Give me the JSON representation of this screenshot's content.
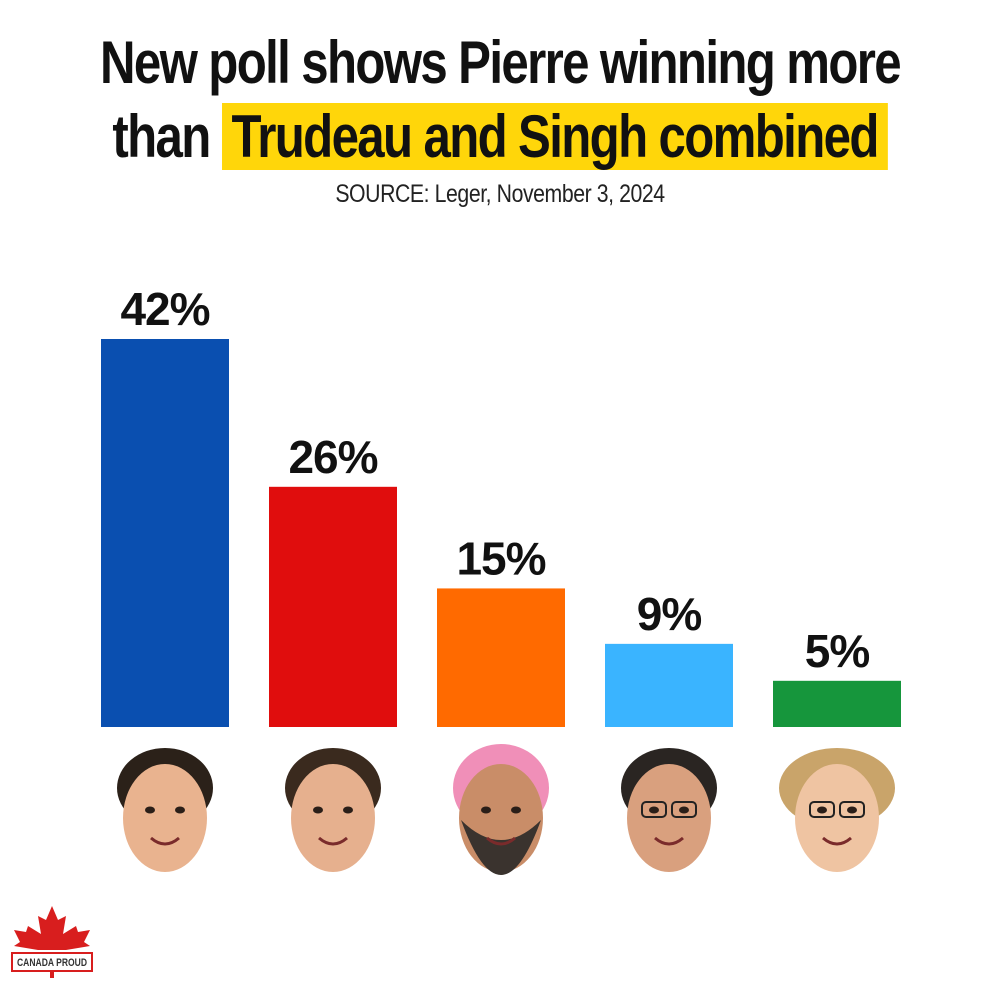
{
  "header": {
    "title_line1": "New poll shows Pierre winning more",
    "title_line2_plain": "than",
    "title_line2_highlight": "Trudeau and Singh combined",
    "source": "SOURCE: Leger, November 3, 2024"
  },
  "colors": {
    "highlight": "#ffd60a",
    "conservative": "#0a4fb0",
    "liberal": "#e00d0d",
    "ndp": "#ff6a00",
    "bloc": "#3ab4ff",
    "green": "#16963c"
  },
  "chart_data": {
    "type": "bar",
    "categories": [
      "",
      "",
      "",
      "",
      ""
    ],
    "values": [
      42,
      26,
      15,
      9,
      5
    ],
    "data_labels": [
      "42%",
      "26%",
      "15%",
      "9%",
      "5%"
    ],
    "bar_colors": [
      "#0a4fb0",
      "#e00d0d",
      "#ff6a00",
      "#3ab4ff",
      "#16963c"
    ],
    "ylim": [
      0,
      42
    ],
    "grid": false,
    "title": "",
    "xlabel": "",
    "ylabel": ""
  },
  "faces": [
    {
      "icon": "portrait-1-icon"
    },
    {
      "icon": "portrait-2-icon"
    },
    {
      "icon": "portrait-3-icon"
    },
    {
      "icon": "portrait-4-icon"
    },
    {
      "icon": "portrait-5-icon"
    }
  ],
  "logo": {
    "text": "CANADA PROUD",
    "icon": "maple-leaf-icon"
  }
}
